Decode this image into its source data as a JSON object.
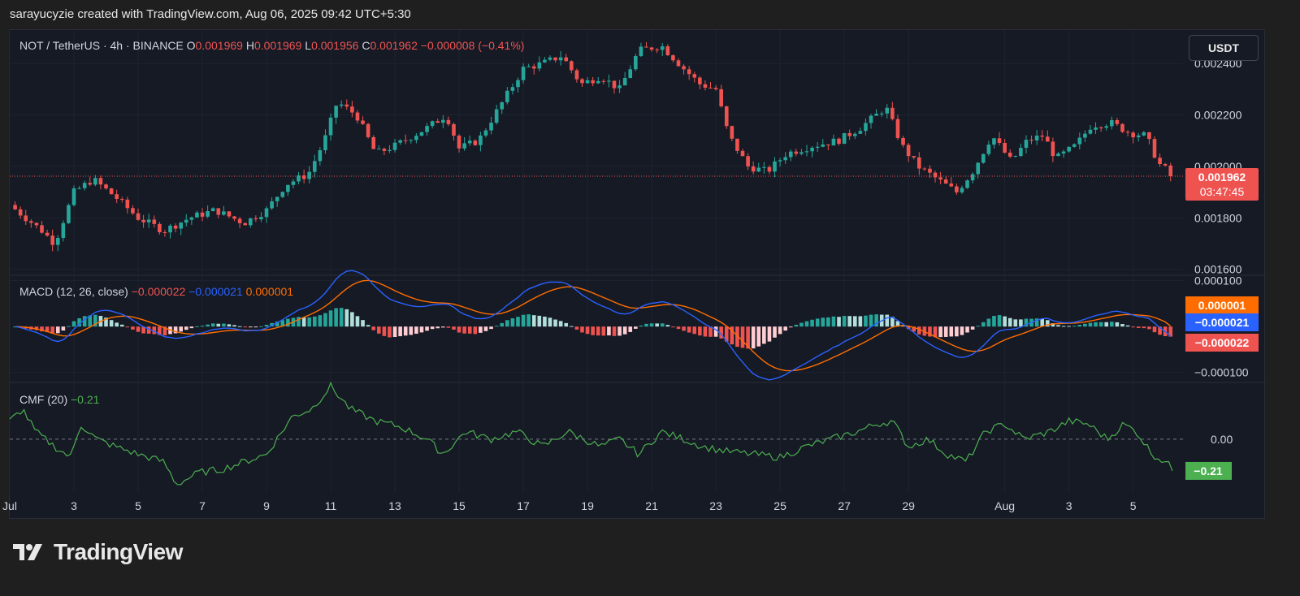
{
  "header": {
    "text": "sarayucyzie created with TradingView.com, Aug 06, 2025 09:42 UTC+5:30"
  },
  "brand": {
    "name": "TradingView"
  },
  "currency_button": {
    "label": "USDT"
  },
  "colors": {
    "up": "#26a69a",
    "down": "#ef5350",
    "macd": "#2962ff",
    "signal": "#ff6d00",
    "cmf": "#4caf50",
    "bg": "#161a25"
  },
  "chart_data": [
    {
      "type": "candlestick",
      "legend": {
        "symbol": "NOT / TetherUS · 4h · BINANCE",
        "o_label": "O",
        "o": "0.001969",
        "h_label": "H",
        "h": "0.001969",
        "l_label": "L",
        "l": "0.001956",
        "c_label": "C",
        "c": "0.001962",
        "change": "−0.000008 (−0.41%)"
      },
      "yticks": [
        "0.002400",
        "0.002200",
        "0.002000",
        "0.001800",
        "0.001600"
      ],
      "ytick_values": [
        0.0024,
        0.0022,
        0.002,
        0.0018,
        0.0016
      ],
      "ylim": [
        0.00158,
        0.00253
      ],
      "last_price": {
        "label": "0.001962",
        "value": 0.001962,
        "countdown": "03:47:45"
      },
      "x_ticks": [
        "Jul",
        "3",
        "5",
        "7",
        "9",
        "11",
        "13",
        "15",
        "17",
        "19",
        "21",
        "23",
        "25",
        "27",
        "29",
        "Aug",
        "3",
        "5"
      ],
      "x_tick_days": [
        1,
        3,
        5,
        7,
        9,
        11,
        13,
        15,
        17,
        19,
        21,
        23,
        25,
        27,
        29,
        32,
        34,
        36
      ],
      "x_range_days": [
        1,
        37.3
      ],
      "close_anchors": [
        [
          1.0,
          0.00185
        ],
        [
          2.0,
          0.00175
        ],
        [
          2.4,
          0.0017
        ],
        [
          3.0,
          0.0019
        ],
        [
          3.6,
          0.00195
        ],
        [
          4.3,
          0.00188
        ],
        [
          5.0,
          0.0018
        ],
        [
          5.8,
          0.00175
        ],
        [
          6.6,
          0.0018
        ],
        [
          7.4,
          0.00183
        ],
        [
          8.3,
          0.00178
        ],
        [
          9.0,
          0.00183
        ],
        [
          9.6,
          0.00193
        ],
        [
          10.3,
          0.00197
        ],
        [
          10.8,
          0.0021
        ],
        [
          11.2,
          0.00225
        ],
        [
          11.8,
          0.0022
        ],
        [
          12.4,
          0.00205
        ],
        [
          13.0,
          0.00208
        ],
        [
          14.0,
          0.00215
        ],
        [
          14.6,
          0.0022
        ],
        [
          15.0,
          0.00207
        ],
        [
          15.6,
          0.0021
        ],
        [
          16.2,
          0.00222
        ],
        [
          17.0,
          0.00238
        ],
        [
          17.6,
          0.0024
        ],
        [
          18.2,
          0.00243
        ],
        [
          18.8,
          0.00232
        ],
        [
          19.4,
          0.00235
        ],
        [
          20.0,
          0.0023
        ],
        [
          20.6,
          0.00245
        ],
        [
          21.3,
          0.00247
        ],
        [
          22.0,
          0.00238
        ],
        [
          22.5,
          0.00232
        ],
        [
          23.0,
          0.0023
        ],
        [
          23.4,
          0.00212
        ],
        [
          24.0,
          0.002
        ],
        [
          24.6,
          0.00198
        ],
        [
          25.2,
          0.00205
        ],
        [
          26.0,
          0.00208
        ],
        [
          26.8,
          0.0021
        ],
        [
          27.5,
          0.00215
        ],
        [
          28.3,
          0.00223
        ],
        [
          28.8,
          0.00208
        ],
        [
          29.3,
          0.002
        ],
        [
          29.9,
          0.00195
        ],
        [
          30.5,
          0.0019
        ],
        [
          31.0,
          0.00198
        ],
        [
          31.6,
          0.00212
        ],
        [
          32.2,
          0.00202
        ],
        [
          32.7,
          0.0021
        ],
        [
          33.2,
          0.00212
        ],
        [
          33.6,
          0.00203
        ],
        [
          34.2,
          0.00208
        ],
        [
          34.7,
          0.00216
        ],
        [
          35.3,
          0.00217
        ],
        [
          35.9,
          0.00213
        ],
        [
          36.4,
          0.00212
        ],
        [
          36.8,
          0.00201
        ],
        [
          37.3,
          0.001962
        ]
      ]
    },
    {
      "type": "line",
      "legend": {
        "name": "MACD (12, 26, close)",
        "hist_value": "−0.000022",
        "macd_value": "−0.000021",
        "signal_value": "0.000001"
      },
      "yticks": [
        "0.000100",
        "−0.000100"
      ],
      "ytick_values": [
        0.0001,
        -0.0001
      ],
      "ylim": [
        -0.00012,
        0.00011
      ],
      "badges": [
        {
          "label": "0.000001",
          "value": 1e-06
        },
        {
          "label": "−0.000021",
          "value": -2.1e-05
        },
        {
          "label": "−0.000022",
          "value": -2.2e-05
        }
      ]
    },
    {
      "type": "line",
      "legend": {
        "name": "CMF (20)",
        "value": "−0.21"
      },
      "yticks": [
        "0.00"
      ],
      "ytick_values": [
        0
      ],
      "ylim": [
        -0.35,
        0.37
      ],
      "badge": {
        "label": "−0.21",
        "value": -0.21
      },
      "anchors": [
        [
          1.0,
          0.12
        ],
        [
          1.4,
          0.2
        ],
        [
          1.8,
          0.05
        ],
        [
          2.4,
          -0.05
        ],
        [
          2.9,
          -0.12
        ],
        [
          3.2,
          0.1
        ],
        [
          3.7,
          0.0
        ],
        [
          4.3,
          -0.05
        ],
        [
          5.0,
          -0.1
        ],
        [
          5.8,
          -0.15
        ],
        [
          6.2,
          -0.3
        ],
        [
          6.9,
          -0.22
        ],
        [
          7.6,
          -0.2
        ],
        [
          8.3,
          -0.15
        ],
        [
          9.0,
          -0.1
        ],
        [
          9.8,
          0.15
        ],
        [
          10.4,
          0.2
        ],
        [
          11.0,
          0.35
        ],
        [
          11.6,
          0.2
        ],
        [
          12.4,
          0.12
        ],
        [
          13.2,
          0.08
        ],
        [
          14.0,
          0.0
        ],
        [
          14.5,
          -0.1
        ],
        [
          15.2,
          0.05
        ],
        [
          16.0,
          0.0
        ],
        [
          16.8,
          0.05
        ],
        [
          17.6,
          -0.05
        ],
        [
          18.4,
          0.05
        ],
        [
          19.4,
          -0.05
        ],
        [
          20.0,
          0.0
        ],
        [
          20.6,
          -0.1
        ],
        [
          21.3,
          0.05
        ],
        [
          22.0,
          0.0
        ],
        [
          22.6,
          -0.05
        ],
        [
          23.3,
          -0.08
        ],
        [
          24.2,
          -0.1
        ],
        [
          25.0,
          -0.12
        ],
        [
          25.8,
          -0.05
        ],
        [
          26.6,
          0.0
        ],
        [
          27.4,
          0.05
        ],
        [
          28.0,
          0.1
        ],
        [
          28.5,
          0.12
        ],
        [
          29.0,
          -0.05
        ],
        [
          29.6,
          0.0
        ],
        [
          30.2,
          -0.1
        ],
        [
          30.8,
          -0.15
        ],
        [
          31.4,
          0.05
        ],
        [
          32.0,
          0.1
        ],
        [
          32.6,
          0.0
        ],
        [
          33.4,
          0.05
        ],
        [
          34.0,
          0.12
        ],
        [
          34.6,
          0.1
        ],
        [
          35.2,
          0.0
        ],
        [
          35.7,
          0.1
        ],
        [
          36.1,
          0.05
        ],
        [
          36.6,
          -0.1
        ],
        [
          37.0,
          -0.15
        ],
        [
          37.3,
          -0.21
        ]
      ]
    }
  ]
}
